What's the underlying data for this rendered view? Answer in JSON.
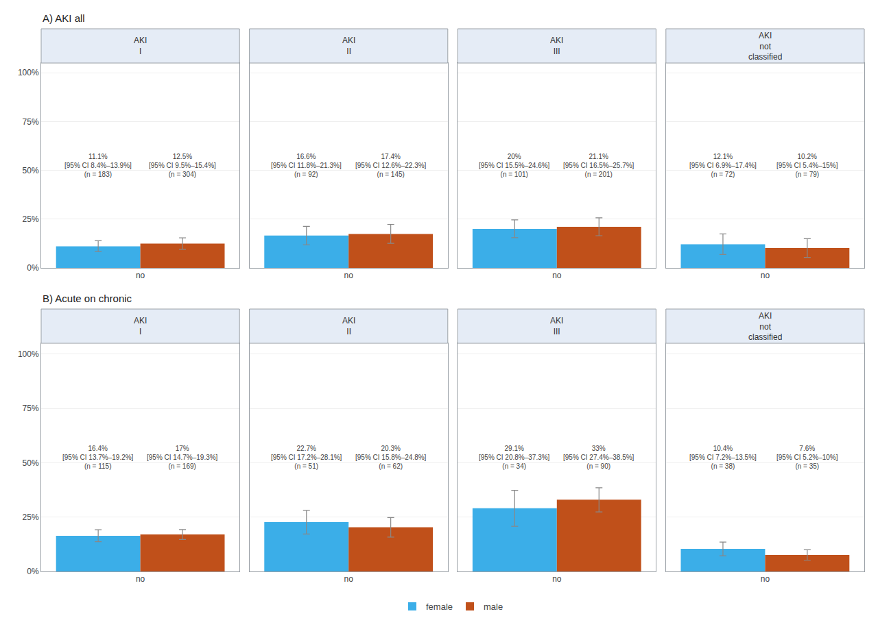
{
  "chart_data": [
    {
      "type": "bar",
      "title": "A) AKI all",
      "legend": "bottom",
      "grid": true,
      "ylim": [
        0,
        105
      ],
      "yticks": [
        {
          "value": 0,
          "label": "0%"
        },
        {
          "value": 25,
          "label": "25%"
        },
        {
          "value": 50,
          "label": "50%"
        },
        {
          "value": 75,
          "label": "75%"
        },
        {
          "value": 100,
          "label": "100%"
        }
      ],
      "facets": [
        {
          "title": "AKI\nI",
          "categories": [
            "no"
          ],
          "series": [
            {
              "name": "female",
              "color": "#3BAEE8",
              "values": [
                11.1
              ],
              "ci_low": [
                8.4
              ],
              "ci_high": [
                13.9
              ],
              "annotations": [
                "11.1%\n[95% CI 8.4%–13.9%]\n(n = 183)"
              ]
            },
            {
              "name": "male",
              "color": "#C0501A",
              "values": [
                12.5
              ],
              "ci_low": [
                9.5
              ],
              "ci_high": [
                15.4
              ],
              "annotations": [
                "12.5%\n[95% CI 9.5%–15.4%]\n(n = 304)"
              ]
            }
          ]
        },
        {
          "title": "AKI\nII",
          "categories": [
            "no"
          ],
          "series": [
            {
              "name": "female",
              "color": "#3BAEE8",
              "values": [
                16.6
              ],
              "ci_low": [
                11.8
              ],
              "ci_high": [
                21.3
              ],
              "annotations": [
                "16.6%\n[95% CI 11.8%–21.3%]\n(n = 92)"
              ]
            },
            {
              "name": "male",
              "color": "#C0501A",
              "values": [
                17.4
              ],
              "ci_low": [
                12.6
              ],
              "ci_high": [
                22.3
              ],
              "annotations": [
                "17.4%\n[95% CI 12.6%–22.3%]\n(n = 145)"
              ]
            }
          ]
        },
        {
          "title": "AKI\nIII",
          "categories": [
            "no"
          ],
          "series": [
            {
              "name": "female",
              "color": "#3BAEE8",
              "values": [
                20.0
              ],
              "ci_low": [
                15.5
              ],
              "ci_high": [
                24.6
              ],
              "annotations": [
                "20%\n[95% CI 15.5%–24.6%]\n(n = 101)"
              ]
            },
            {
              "name": "male",
              "color": "#C0501A",
              "values": [
                21.1
              ],
              "ci_low": [
                16.5
              ],
              "ci_high": [
                25.7
              ],
              "annotations": [
                "21.1%\n[95% CI 16.5%–25.7%]\n(n = 201)"
              ]
            }
          ]
        },
        {
          "title": "AKI\nnot\nclassified",
          "categories": [
            "no"
          ],
          "series": [
            {
              "name": "female",
              "color": "#3BAEE8",
              "values": [
                12.1
              ],
              "ci_low": [
                6.9
              ],
              "ci_high": [
                17.4
              ],
              "annotations": [
                "12.1%\n[95% CI 6.9%–17.4%]\n(n = 72)"
              ]
            },
            {
              "name": "male",
              "color": "#C0501A",
              "values": [
                10.2
              ],
              "ci_low": [
                5.4
              ],
              "ci_high": [
                15.0
              ],
              "annotations": [
                "10.2%\n[95% CI 5.4%–15%]\n(n = 79)"
              ]
            }
          ]
        }
      ]
    },
    {
      "type": "bar",
      "title": "B) Acute on chronic",
      "grid": true,
      "ylim": [
        0,
        105
      ],
      "yticks": [
        {
          "value": 0,
          "label": "0%"
        },
        {
          "value": 25,
          "label": "25%"
        },
        {
          "value": 50,
          "label": "50%"
        },
        {
          "value": 75,
          "label": "75%"
        },
        {
          "value": 100,
          "label": "100%"
        }
      ],
      "facets": [
        {
          "title": "AKI\nI",
          "categories": [
            "no"
          ],
          "series": [
            {
              "name": "female",
              "color": "#3BAEE8",
              "values": [
                16.4
              ],
              "ci_low": [
                13.7
              ],
              "ci_high": [
                19.2
              ],
              "annotations": [
                "16.4%\n[95% CI 13.7%–19.2%]\n(n = 115)"
              ]
            },
            {
              "name": "male",
              "color": "#C0501A",
              "values": [
                17.0
              ],
              "ci_low": [
                14.7
              ],
              "ci_high": [
                19.3
              ],
              "annotations": [
                "17%\n[95% CI 14.7%–19.3%]\n(n = 169)"
              ]
            }
          ]
        },
        {
          "title": "AKI\nII",
          "categories": [
            "no"
          ],
          "series": [
            {
              "name": "female",
              "color": "#3BAEE8",
              "values": [
                22.7
              ],
              "ci_low": [
                17.2
              ],
              "ci_high": [
                28.1
              ],
              "annotations": [
                "22.7%\n[95% CI 17.2%–28.1%]\n(n = 51)"
              ]
            },
            {
              "name": "male",
              "color": "#C0501A",
              "values": [
                20.3
              ],
              "ci_low": [
                15.8
              ],
              "ci_high": [
                24.8
              ],
              "annotations": [
                "20.3%\n[95% CI 15.8%–24.8%]\n(n = 62)"
              ]
            }
          ]
        },
        {
          "title": "AKI\nIII",
          "categories": [
            "no"
          ],
          "series": [
            {
              "name": "female",
              "color": "#3BAEE8",
              "values": [
                29.1
              ],
              "ci_low": [
                20.8
              ],
              "ci_high": [
                37.3
              ],
              "annotations": [
                "29.1%\n[95% CI 20.8%–37.3%]\n(n = 34)"
              ]
            },
            {
              "name": "male",
              "color": "#C0501A",
              "values": [
                33.0
              ],
              "ci_low": [
                27.4
              ],
              "ci_high": [
                38.5
              ],
              "annotations": [
                "33%\n[95% CI 27.4%–38.5%]\n(n = 90)"
              ]
            }
          ]
        },
        {
          "title": "AKI\nnot\nclassified",
          "categories": [
            "no"
          ],
          "series": [
            {
              "name": "female",
              "color": "#3BAEE8",
              "values": [
                10.4
              ],
              "ci_low": [
                7.2
              ],
              "ci_high": [
                13.5
              ],
              "annotations": [
                "10.4%\n[95% CI 7.2%–13.5%]\n(n = 38)"
              ]
            },
            {
              "name": "male",
              "color": "#C0501A",
              "values": [
                7.6
              ],
              "ci_low": [
                5.2
              ],
              "ci_high": [
                10.0
              ],
              "annotations": [
                "7.6%\n[95% CI 5.2%–10%]\n(n = 35)"
              ]
            }
          ]
        }
      ]
    }
  ]
}
